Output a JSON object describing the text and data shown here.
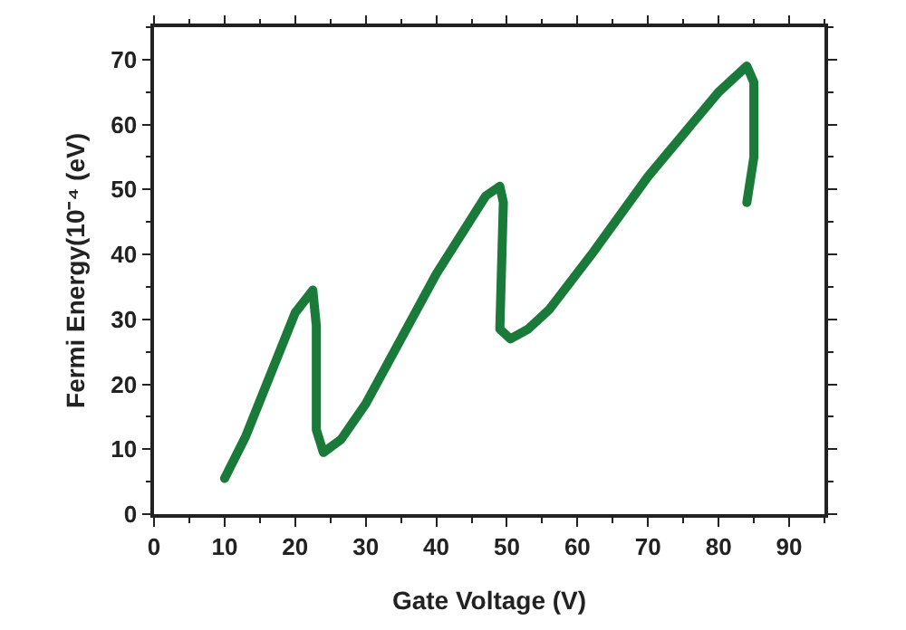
{
  "chart_data": {
    "type": "line",
    "xlabel": "Gate Voltage (V)",
    "ylabel": "Fermi Energy(10⁻⁴ (eV)",
    "x": [
      10,
      13,
      20,
      22.5,
      23,
      23,
      24,
      26.5,
      30,
      35,
      40,
      47,
      49,
      49.5,
      49,
      50.5,
      53,
      56,
      62,
      70,
      80,
      84,
      85,
      85,
      84
    ],
    "series": [
      {
        "color": "#1a7a3a",
        "values": [
          5.5,
          12,
          31,
          34.5,
          29,
          13,
          9.5,
          11.5,
          17,
          27,
          37,
          49,
          50.5,
          48,
          28.5,
          27,
          28.5,
          31.5,
          40,
          52,
          65,
          69,
          66.5,
          55,
          48
        ]
      }
    ],
    "xlim": [
      0,
      95
    ],
    "xticks": [
      0,
      10,
      20,
      30,
      40,
      50,
      60,
      70,
      80,
      90
    ],
    "ylim": [
      0,
      75
    ],
    "yticks": [
      0,
      10,
      20,
      30,
      40,
      50,
      60,
      70
    ],
    "grid": false,
    "marker": "none",
    "line_style": "solid"
  }
}
